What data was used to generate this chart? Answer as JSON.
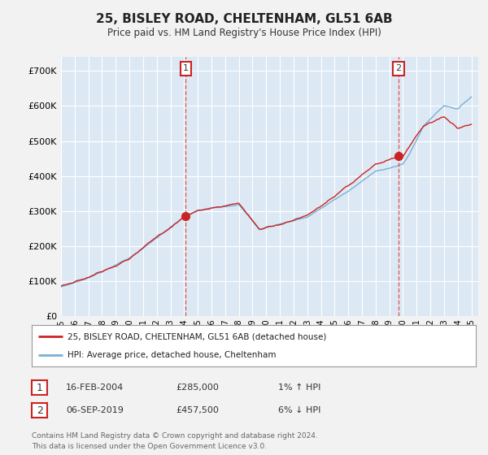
{
  "title": "25, BISLEY ROAD, CHELTENHAM, GL51 6AB",
  "subtitle": "Price paid vs. HM Land Registry's House Price Index (HPI)",
  "ylabel_ticks": [
    "£0",
    "£100K",
    "£200K",
    "£300K",
    "£400K",
    "£500K",
    "£600K",
    "£700K"
  ],
  "ytick_vals": [
    0,
    100000,
    200000,
    300000,
    400000,
    500000,
    600000,
    700000
  ],
  "ylim": [
    0,
    740000
  ],
  "xlim_start": 1995.0,
  "xlim_end": 2025.5,
  "xtick_years": [
    1995,
    1996,
    1997,
    1998,
    1999,
    2000,
    2001,
    2002,
    2003,
    2004,
    2005,
    2006,
    2007,
    2008,
    2009,
    2010,
    2011,
    2012,
    2013,
    2014,
    2015,
    2016,
    2017,
    2018,
    2019,
    2020,
    2021,
    2022,
    2023,
    2024,
    2025
  ],
  "hpi_color": "#7ab0d4",
  "price_color": "#cc2222",
  "marker_color": "#cc2222",
  "vline_color": "#dd4444",
  "numbox_edge_color": "#cc2222",
  "background_color": "#f2f2f2",
  "plot_bg_color": "#dce9f5",
  "grid_color": "#ffffff",
  "transaction1_date": "16-FEB-2004",
  "transaction1_price": 285000,
  "transaction1_label": "£285,000",
  "transaction1_hpi": "1% ↑ HPI",
  "transaction1_x": 2004.12,
  "transaction1_y": 285000,
  "transaction2_date": "06-SEP-2019",
  "transaction2_price": 457500,
  "transaction2_label": "£457,500",
  "transaction2_hpi": "6% ↓ HPI",
  "transaction2_x": 2019.68,
  "transaction2_y": 457500,
  "legend_line1": "25, BISLEY ROAD, CHELTENHAM, GL51 6AB (detached house)",
  "legend_line2": "HPI: Average price, detached house, Cheltenham",
  "footer1": "Contains HM Land Registry data © Crown copyright and database right 2024.",
  "footer2": "This data is licensed under the Open Government Licence v3.0."
}
